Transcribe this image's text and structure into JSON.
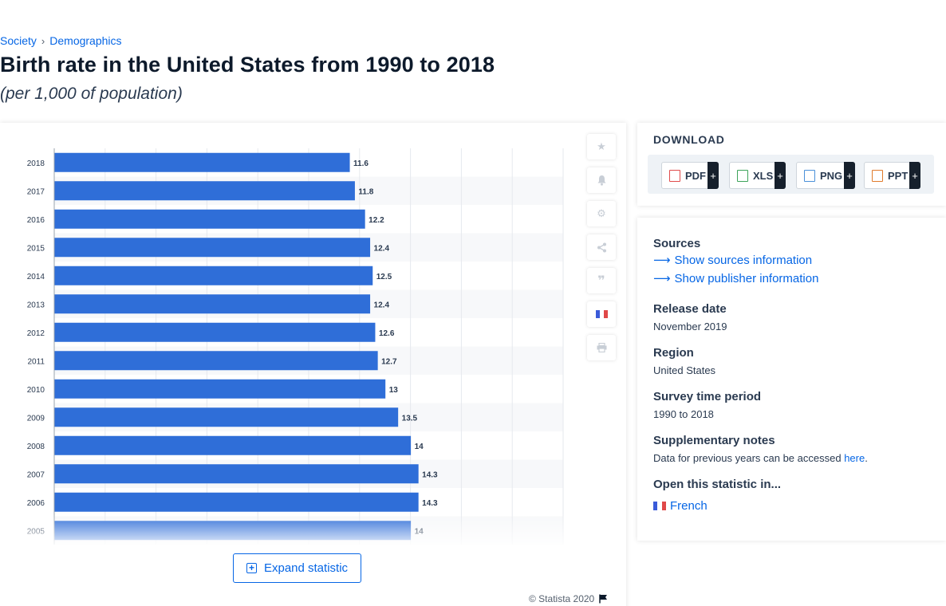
{
  "breadcrumb": {
    "items": [
      "Society",
      "Demographics"
    ],
    "separator": "›"
  },
  "title": "Birth rate in the United States from 1990 to 2018",
  "subtitle": "(per 1,000 of population)",
  "chart_data": {
    "type": "bar",
    "orientation": "horizontal",
    "categories": [
      "2018",
      "2017",
      "2016",
      "2015",
      "2014",
      "2013",
      "2012",
      "2011",
      "2010",
      "2009",
      "2008",
      "2007",
      "2006",
      "2005"
    ],
    "values": [
      11.6,
      11.8,
      12.2,
      12.4,
      12.5,
      12.4,
      12.6,
      12.7,
      13,
      13.5,
      14,
      14.3,
      14.3,
      14
    ],
    "value_labels": [
      "11.6",
      "11.8",
      "12.2",
      "12.4",
      "12.5",
      "12.4",
      "12.6",
      "12.7",
      "13",
      "13.5",
      "14",
      "14.3",
      "14.3",
      "14"
    ],
    "xlim": [
      0,
      20
    ],
    "bar_color": "#2f6ed8",
    "grid": true,
    "title": "",
    "xlabel": "",
    "ylabel": ""
  },
  "expand_label": "Expand statistic",
  "copyright": "© Statista 2020",
  "toolbar": {
    "icons": [
      "star-icon",
      "bell-icon",
      "gear-icon",
      "share-icon",
      "quote-icon",
      "french-flag-icon",
      "print-icon"
    ]
  },
  "download": {
    "title": "DOWNLOAD",
    "formats": [
      {
        "label": "PDF",
        "color": "#e04b4b"
      },
      {
        "label": "XLS",
        "color": "#3ca35a"
      },
      {
        "label": "PNG",
        "color": "#4a90d9"
      },
      {
        "label": "PPT",
        "color": "#e07b2c"
      }
    ],
    "plus": "+"
  },
  "info": {
    "sources_heading": "Sources",
    "sources_link": "Show sources information",
    "publisher_link": "Show publisher information",
    "release_heading": "Release date",
    "release_value": "November 2019",
    "region_heading": "Region",
    "region_value": "United States",
    "survey_heading": "Survey time period",
    "survey_value": "1990 to 2018",
    "notes_heading": "Supplementary notes",
    "notes_text": "Data for previous years can be accessed ",
    "notes_link": "here",
    "notes_end": ".",
    "open_heading": "Open this statistic in...",
    "open_link": "French"
  }
}
